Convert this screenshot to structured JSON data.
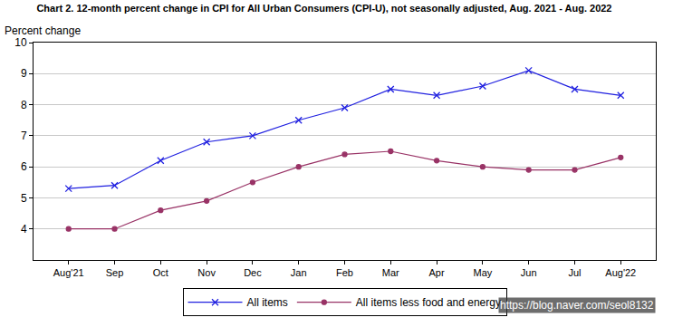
{
  "chart_data": {
    "type": "line",
    "title": "Chart 2. 12-month percent change in CPI for All Urban Consumers (CPI-U), not seasonally adjusted, Aug. 2021 - Aug. 2022",
    "y_label": "Percent change",
    "categories": [
      "Aug'21",
      "Sep",
      "Oct",
      "Nov",
      "Dec",
      "Jan",
      "Feb",
      "Mar",
      "Apr",
      "May",
      "Jun",
      "Jul",
      "Aug'22"
    ],
    "series": [
      {
        "name": "All items",
        "color": "#2020e0",
        "marker": "x",
        "values": [
          5.3,
          5.4,
          6.2,
          6.8,
          7.0,
          7.5,
          7.9,
          8.5,
          8.3,
          8.6,
          9.1,
          8.5,
          8.3
        ]
      },
      {
        "name": "All items less food and energy",
        "color": "#993366",
        "marker": "circle",
        "values": [
          4.0,
          4.0,
          4.6,
          4.9,
          5.5,
          6.0,
          6.4,
          6.5,
          6.2,
          6.0,
          5.9,
          5.9,
          6.3
        ]
      }
    ],
    "ylim": [
      3,
      10
    ],
    "yticks": [
      4,
      5,
      6,
      7,
      8,
      9,
      10
    ],
    "grid": true,
    "legend": "bottom",
    "annotations": [
      "https://blog.naver.com/seol8132"
    ]
  }
}
